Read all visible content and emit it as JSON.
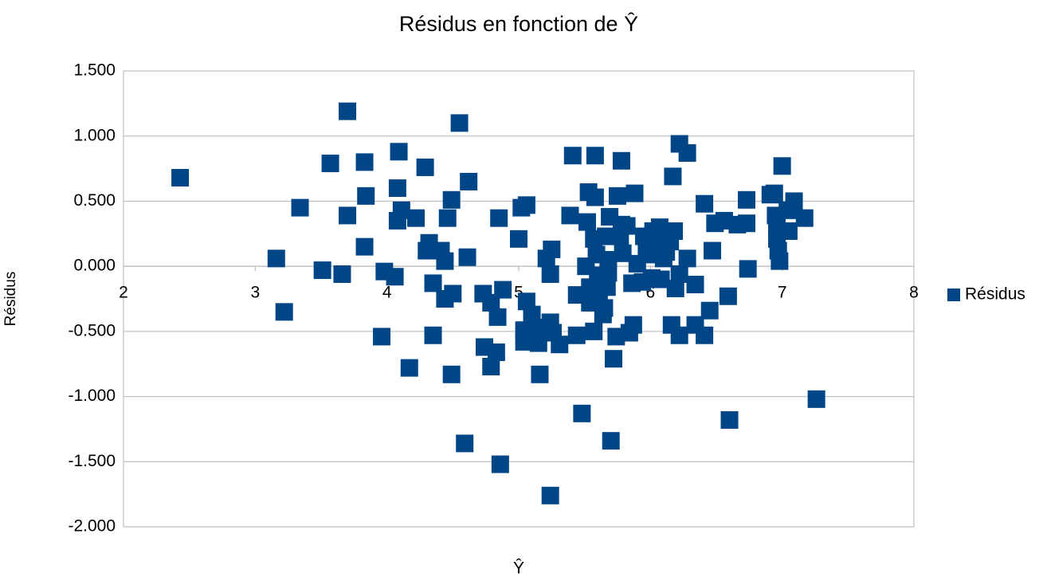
{
  "chart_data": {
    "type": "scatter",
    "title": "Résidus en fonction de Ŷ",
    "x_label": "Ŷ",
    "y_label": "Résidus",
    "series": [
      {
        "name": "Résidus",
        "color": "#004586",
        "x": [
          2.43,
          3.16,
          3.22,
          3.34,
          3.51,
          3.57,
          3.66,
          3.7,
          3.7,
          3.83,
          3.84,
          3.83,
          3.96,
          3.98,
          4.06,
          4.08,
          4.09,
          4.08,
          4.11,
          4.17,
          4.22,
          4.29,
          4.3,
          4.32,
          4.35,
          4.35,
          4.41,
          4.44,
          4.44,
          4.46,
          4.49,
          4.5,
          4.49,
          4.55,
          4.59,
          4.62,
          4.61,
          4.73,
          4.74,
          4.79,
          4.79,
          4.83,
          4.84,
          4.85,
          4.86,
          4.88,
          5.0,
          5.02,
          5.06,
          5.06,
          5.04,
          5.04,
          5.1,
          5.12,
          5.12,
          5.15,
          5.16,
          5.21,
          5.24,
          5.24,
          5.25,
          5.24,
          5.21,
          5.26,
          5.31,
          5.39,
          5.41,
          5.44,
          5.44,
          5.48,
          5.51,
          5.52,
          5.53,
          5.54,
          5.54,
          5.57,
          5.58,
          5.57,
          5.58,
          5.59,
          5.6,
          5.61,
          5.64,
          5.65,
          5.66,
          5.67,
          5.68,
          5.68,
          5.69,
          5.7,
          5.72,
          5.74,
          5.75,
          5.78,
          5.77,
          5.78,
          5.79,
          5.82,
          5.84,
          5.86,
          5.87,
          5.88,
          5.9,
          5.94,
          5.95,
          5.97,
          5.99,
          6.01,
          6.02,
          6.05,
          6.07,
          6.08,
          6.1,
          6.12,
          6.15,
          6.16,
          6.17,
          6.18,
          6.19,
          6.22,
          6.22,
          6.22,
          6.28,
          6.28,
          6.34,
          6.34,
          6.41,
          6.41,
          6.45,
          6.47,
          6.49,
          6.56,
          6.59,
          6.6,
          6.66,
          6.73,
          6.73,
          6.74,
          6.91,
          6.94,
          6.95,
          6.96,
          6.96,
          6.97,
          6.98,
          7.0,
          7.04,
          7.05,
          7.09,
          7.17,
          7.26
        ],
        "values": [
          0.68,
          0.06,
          -0.35,
          0.45,
          -0.03,
          0.79,
          -0.06,
          0.39,
          1.19,
          0.8,
          0.54,
          0.15,
          -0.54,
          -0.04,
          -0.08,
          0.6,
          0.88,
          0.35,
          0.43,
          -0.78,
          0.37,
          0.76,
          0.12,
          0.18,
          -0.53,
          -0.13,
          0.12,
          0.04,
          -0.25,
          0.37,
          0.51,
          -0.21,
          -0.83,
          1.1,
          -1.36,
          0.65,
          0.07,
          -0.21,
          -0.62,
          -0.77,
          -0.28,
          -0.66,
          -0.39,
          0.37,
          -1.52,
          -0.18,
          0.21,
          0.45,
          0.47,
          -0.27,
          -0.49,
          -0.58,
          -0.37,
          -0.47,
          -0.54,
          -0.59,
          -0.83,
          0.06,
          -0.06,
          -0.43,
          0.13,
          -1.76,
          -0.49,
          -0.51,
          -0.6,
          0.39,
          0.85,
          -0.22,
          -0.53,
          -1.13,
          0.0,
          0.34,
          0.57,
          -0.28,
          -0.16,
          0.21,
          0.85,
          -0.5,
          0.53,
          0.09,
          -0.07,
          -0.21,
          -0.37,
          -0.32,
          0.23,
          -0.16,
          -0.05,
          0.05,
          0.38,
          -1.34,
          -0.71,
          -0.54,
          0.54,
          0.81,
          0.23,
          0.32,
          0.1,
          0.31,
          -0.51,
          -0.13,
          -0.45,
          0.56,
          0.02,
          -0.12,
          0.23,
          0.12,
          0.09,
          -0.09,
          0.27,
          0.21,
          0.3,
          -0.1,
          0.06,
          0.11,
          0.19,
          -0.45,
          0.69,
          0.27,
          -0.17,
          -0.53,
          0.94,
          -0.06,
          0.87,
          0.06,
          -0.14,
          -0.45,
          0.48,
          -0.53,
          -0.34,
          0.12,
          0.33,
          0.35,
          -0.23,
          -1.18,
          0.32,
          0.33,
          0.51,
          -0.02,
          0.55,
          0.56,
          0.39,
          0.31,
          0.21,
          0.12,
          0.04,
          0.77,
          0.43,
          0.27,
          0.5,
          0.37,
          -1.02
        ]
      }
    ],
    "xlim": [
      2,
      8
    ],
    "xticks": [
      2,
      3,
      4,
      5,
      6,
      7,
      8
    ],
    "ylim": [
      -2,
      1.5
    ],
    "yticks": [
      {
        "value": -2,
        "label": "-2.000"
      },
      {
        "value": -1.5,
        "label": "-1.500"
      },
      {
        "value": -1,
        "label": "-1.000"
      },
      {
        "value": -0.5,
        "label": "-0.500"
      },
      {
        "value": 0,
        "label": "0.000"
      },
      {
        "value": 0.5,
        "label": "0.500"
      },
      {
        "value": 1,
        "label": "1.000"
      },
      {
        "value": 1.5,
        "label": "1.500"
      }
    ],
    "grid": true,
    "legend": "right"
  }
}
